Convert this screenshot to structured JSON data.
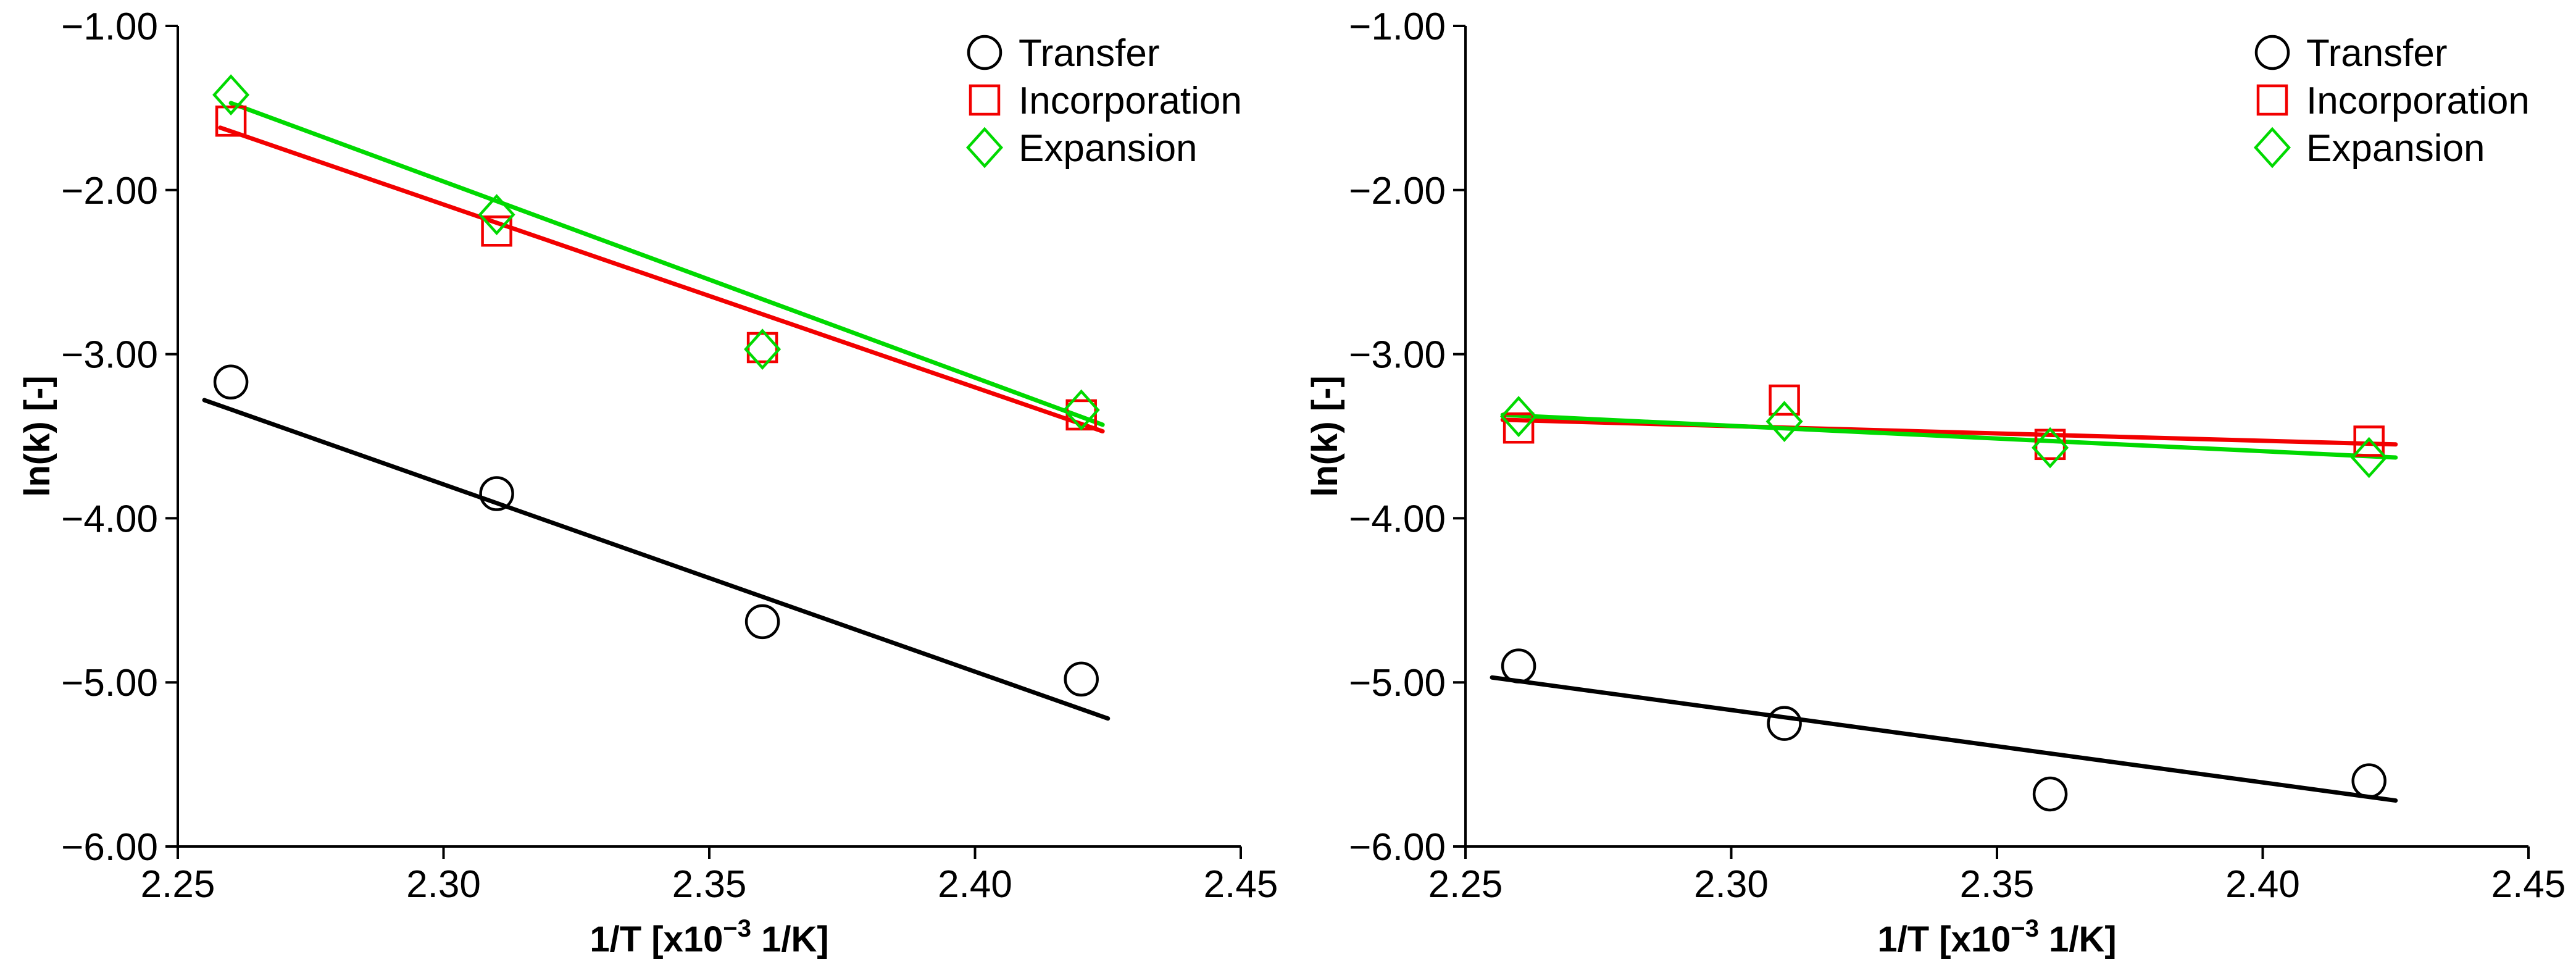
{
  "figure": {
    "background": "#ffffff",
    "description_colors": {
      "transfer": "#000000",
      "incorporation": "#f20000",
      "expansion": "#00d900"
    }
  },
  "chart_data": [
    {
      "type": "scatter",
      "title": "",
      "xlabel": "1/T [x10⁻³ 1/K]",
      "xlabel_parts": {
        "pre": "1/T [x10",
        "sup": "−3",
        "post": " 1/K]"
      },
      "ylabel": "ln(k) [-]",
      "xlim": [
        2.25,
        2.45
      ],
      "ylim": [
        -6.0,
        -1.0
      ],
      "xticks": [
        2.25,
        2.3,
        2.35,
        2.4,
        2.45
      ],
      "yticks": [
        -1.0,
        -2.0,
        -3.0,
        -4.0,
        -5.0,
        -6.0
      ],
      "grid": false,
      "legend_position": "top-right",
      "series": [
        {
          "name": "Transfer",
          "marker": "circle",
          "color": "#000000",
          "x": [
            2.26,
            2.31,
            2.36,
            2.42
          ],
          "y": [
            -3.17,
            -3.85,
            -4.63,
            -4.98
          ],
          "fit_line": {
            "x": [
              2.255,
              2.425
            ],
            "y": [
              -3.28,
              -5.22
            ]
          }
        },
        {
          "name": "Incorporation",
          "marker": "square",
          "color": "#f20000",
          "x": [
            2.26,
            2.31,
            2.36,
            2.42
          ],
          "y": [
            -1.58,
            -2.25,
            -2.96,
            -3.37
          ],
          "fit_line": {
            "x": [
              2.258,
              2.424
            ],
            "y": [
              -1.62,
              -3.47
            ]
          }
        },
        {
          "name": "Expansion",
          "marker": "diamond",
          "color": "#00d900",
          "x": [
            2.26,
            2.31,
            2.36,
            2.42
          ],
          "y": [
            -1.42,
            -2.15,
            -2.97,
            -3.34
          ],
          "fit_line": {
            "x": [
              2.26,
              2.424
            ],
            "y": [
              -1.47,
              -3.43
            ]
          }
        }
      ]
    },
    {
      "type": "scatter",
      "title": "",
      "xlabel": "1/T [x10⁻³ 1/K]",
      "xlabel_parts": {
        "pre": "1/T [x10",
        "sup": "−3",
        "post": " 1/K]"
      },
      "ylabel": "ln(k) [-]",
      "xlim": [
        2.25,
        2.45
      ],
      "ylim": [
        -6.0,
        -1.0
      ],
      "xticks": [
        2.25,
        2.3,
        2.35,
        2.4,
        2.45
      ],
      "yticks": [
        -1.0,
        -2.0,
        -3.0,
        -4.0,
        -5.0,
        -6.0
      ],
      "grid": false,
      "legend_position": "top-right",
      "series": [
        {
          "name": "Transfer",
          "marker": "circle",
          "color": "#000000",
          "x": [
            2.26,
            2.31,
            2.36,
            2.42
          ],
          "y": [
            -4.9,
            -5.25,
            -5.68,
            -5.6
          ],
          "fit_line": {
            "x": [
              2.255,
              2.425
            ],
            "y": [
              -4.97,
              -5.72
            ]
          }
        },
        {
          "name": "Incorporation",
          "marker": "square",
          "color": "#f20000",
          "x": [
            2.26,
            2.31,
            2.36,
            2.42
          ],
          "y": [
            -3.45,
            -3.28,
            -3.55,
            -3.53
          ],
          "fit_line": {
            "x": [
              2.257,
              2.425
            ],
            "y": [
              -3.4,
              -3.55
            ]
          }
        },
        {
          "name": "Expansion",
          "marker": "diamond",
          "color": "#00d900",
          "x": [
            2.26,
            2.31,
            2.36,
            2.42
          ],
          "y": [
            -3.38,
            -3.41,
            -3.57,
            -3.63
          ],
          "fit_line": {
            "x": [
              2.257,
              2.425
            ],
            "y": [
              -3.37,
              -3.63
            ]
          }
        }
      ]
    }
  ]
}
